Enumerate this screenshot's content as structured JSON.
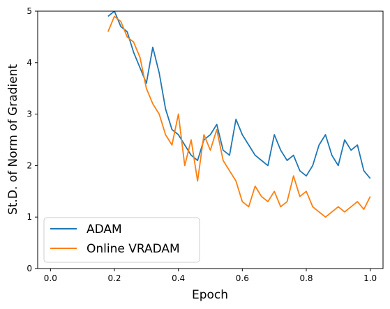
{
  "chart_data": {
    "type": "line",
    "title": "",
    "xlabel": "Epoch",
    "ylabel": "St.D. of Norm of Gradient",
    "xlim": [
      -0.04,
      1.04
    ],
    "ylim": [
      0,
      5
    ],
    "xticks": [
      "0.0",
      "0.2",
      "0.4",
      "0.6",
      "0.8",
      "1.0"
    ],
    "yticks": [
      "0",
      "1",
      "2",
      "3",
      "4",
      "5"
    ],
    "grid": false,
    "legend_position": "lower-left",
    "series": [
      {
        "name": "ADAM",
        "color": "#1f77b4",
        "x": [
          0.18,
          0.2,
          0.22,
          0.24,
          0.26,
          0.28,
          0.3,
          0.32,
          0.34,
          0.36,
          0.38,
          0.4,
          0.42,
          0.44,
          0.46,
          0.48,
          0.5,
          0.52,
          0.54,
          0.56,
          0.58,
          0.6,
          0.62,
          0.64,
          0.66,
          0.68,
          0.7,
          0.72,
          0.74,
          0.76,
          0.78,
          0.8,
          0.82,
          0.84,
          0.86,
          0.88,
          0.9,
          0.92,
          0.94,
          0.96,
          0.98,
          1.0
        ],
        "y": [
          4.9,
          5.0,
          4.7,
          4.6,
          4.2,
          3.9,
          3.6,
          4.3,
          3.8,
          3.1,
          2.7,
          2.6,
          2.4,
          2.2,
          2.1,
          2.5,
          2.6,
          2.8,
          2.3,
          2.2,
          2.9,
          2.6,
          2.4,
          2.2,
          2.1,
          2.0,
          2.6,
          2.3,
          2.1,
          2.2,
          1.9,
          1.8,
          2.0,
          2.4,
          2.6,
          2.2,
          2.0,
          2.5,
          2.3,
          2.4,
          1.9,
          1.75
        ]
      },
      {
        "name": "Online VRADAM",
        "color": "#ff7f0e",
        "x": [
          0.18,
          0.2,
          0.22,
          0.24,
          0.26,
          0.28,
          0.3,
          0.32,
          0.34,
          0.36,
          0.38,
          0.4,
          0.42,
          0.44,
          0.46,
          0.48,
          0.5,
          0.52,
          0.54,
          0.56,
          0.58,
          0.6,
          0.62,
          0.64,
          0.66,
          0.68,
          0.7,
          0.72,
          0.74,
          0.76,
          0.78,
          0.8,
          0.82,
          0.84,
          0.86,
          0.88,
          0.9,
          0.92,
          0.94,
          0.96,
          0.98,
          1.0
        ],
        "y": [
          4.6,
          4.9,
          4.8,
          4.5,
          4.4,
          4.1,
          3.5,
          3.2,
          3.0,
          2.6,
          2.4,
          3.0,
          2.0,
          2.5,
          1.7,
          2.6,
          2.3,
          2.7,
          2.1,
          1.9,
          1.7,
          1.3,
          1.2,
          1.6,
          1.4,
          1.3,
          1.5,
          1.2,
          1.3,
          1.8,
          1.4,
          1.5,
          1.2,
          1.1,
          1.0,
          1.1,
          1.2,
          1.1,
          1.2,
          1.3,
          1.15,
          1.4
        ]
      }
    ]
  }
}
